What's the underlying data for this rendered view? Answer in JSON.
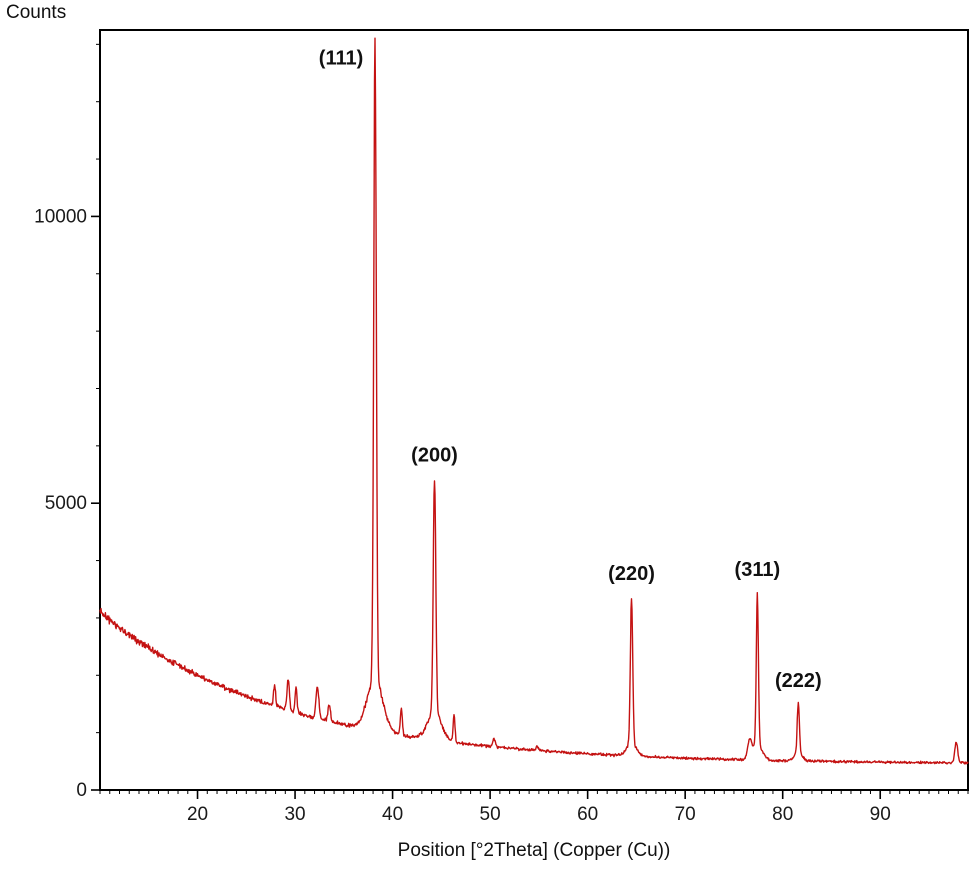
{
  "figure": {
    "background": "#ffffff",
    "border_color": "#000000"
  },
  "chart_data": {
    "type": "line",
    "title": "",
    "xlabel": "Position [°2Theta] (Copper (Cu))",
    "ylabel": "Counts",
    "xlim": [
      10,
      99
    ],
    "ylim": [
      0,
      13250
    ],
    "xticks": [
      20,
      30,
      40,
      50,
      60,
      70,
      80,
      90
    ],
    "yticks": [
      0,
      5000,
      10000
    ],
    "x_minor_step": 1,
    "y_minor_step": 1000,
    "grid": false,
    "legend": "none",
    "line_color": "#c41212",
    "background_curve": {
      "base": 450,
      "amp": 2650,
      "decay": 0.0536
    },
    "peaks": [
      {
        "label": "(111)",
        "x": 38.2,
        "tip": 13100,
        "w": 0.13,
        "base_h": 900,
        "base_w": 0.8,
        "label_dx": -34,
        "label_dy": 26
      },
      {
        "label": "(200)",
        "x": 44.3,
        "tip": 5450,
        "w": 0.13,
        "base_h": 500,
        "base_w": 0.7,
        "label_dx": 0,
        "label_dy": -16
      },
      {
        "label": "(220)",
        "x": 64.5,
        "tip": 3380,
        "w": 0.12,
        "base_h": 220,
        "base_w": 0.5,
        "label_dx": 0,
        "label_dy": -16
      },
      {
        "label": "(311)",
        "x": 77.4,
        "tip": 3450,
        "w": 0.11,
        "base_h": 260,
        "base_w": 0.5,
        "label_dx": 0,
        "label_dy": -16
      },
      {
        "label": "(222)",
        "x": 81.6,
        "tip": 1520,
        "w": 0.11,
        "base_h": 150,
        "base_w": 0.4,
        "label_dx": 0,
        "label_dy": -16
      }
    ],
    "minor_peaks": [
      {
        "x": 27.9,
        "tip": 1850,
        "w": 0.1
      },
      {
        "x": 29.3,
        "tip": 1950,
        "w": 0.12
      },
      {
        "x": 30.1,
        "tip": 1800,
        "w": 0.1
      },
      {
        "x": 32.3,
        "tip": 1800,
        "w": 0.15
      },
      {
        "x": 33.5,
        "tip": 1500,
        "w": 0.12
      },
      {
        "x": 40.9,
        "tip": 1430,
        "w": 0.1
      },
      {
        "x": 46.3,
        "tip": 1300,
        "w": 0.1
      },
      {
        "x": 50.4,
        "tip": 900,
        "w": 0.12
      },
      {
        "x": 54.8,
        "tip": 760,
        "w": 0.12
      },
      {
        "x": 76.6,
        "tip": 820,
        "w": 0.2
      },
      {
        "x": 97.8,
        "tip": 830,
        "w": 0.15
      }
    ],
    "noise": {
      "floor": 14,
      "fraction": 0.022,
      "seed": 20240601
    }
  }
}
